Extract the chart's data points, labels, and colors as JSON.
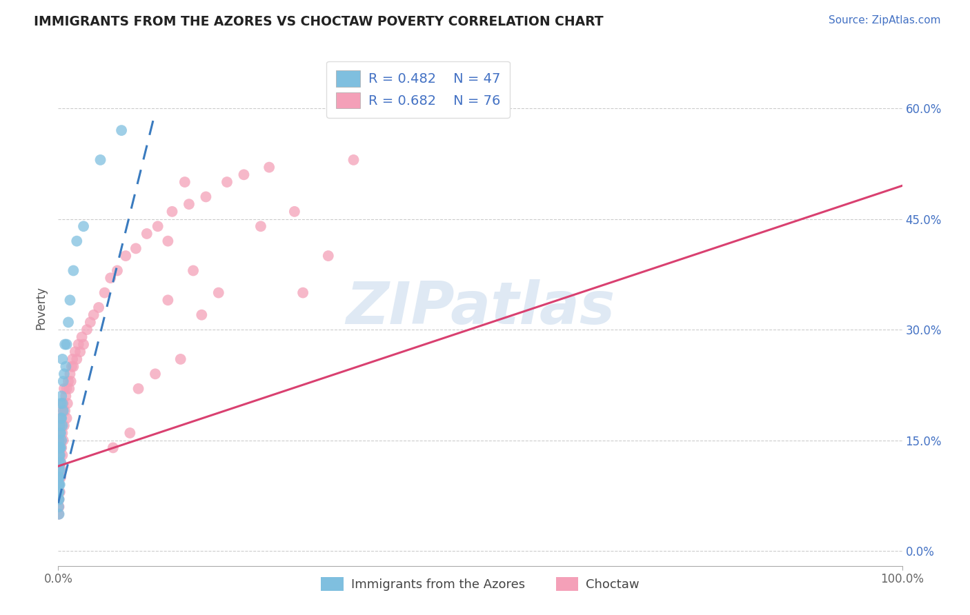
{
  "title": "IMMIGRANTS FROM THE AZORES VS CHOCTAW POVERTY CORRELATION CHART",
  "source_text": "Source: ZipAtlas.com",
  "ylabel": "Poverty",
  "xmin": 0.0,
  "xmax": 1.0,
  "ymin": -0.02,
  "ymax": 0.68,
  "ytick_vals": [
    0.0,
    0.15,
    0.3,
    0.45,
    0.6
  ],
  "ytick_labels": [
    "0.0%",
    "15.0%",
    "30.0%",
    "45.0%",
    "60.0%"
  ],
  "color_blue": "#7fbfdf",
  "color_pink": "#f4a0b8",
  "color_blue_line": "#3a7bbf",
  "color_pink_line": "#d94070",
  "color_blue_line_dashed": "#7ab0d8",
  "watermark_text": "ZIPatlas",
  "background_color": "#ffffff",
  "blue_x": [
    0.0005,
    0.0005,
    0.0005,
    0.0005,
    0.0005,
    0.001,
    0.001,
    0.001,
    0.001,
    0.001,
    0.001,
    0.001,
    0.001,
    0.001,
    0.001,
    0.0015,
    0.0015,
    0.002,
    0.002,
    0.002,
    0.002,
    0.002,
    0.002,
    0.003,
    0.003,
    0.003,
    0.003,
    0.003,
    0.004,
    0.004,
    0.004,
    0.005,
    0.005,
    0.005,
    0.006,
    0.006,
    0.007,
    0.008,
    0.009,
    0.01,
    0.012,
    0.014,
    0.018,
    0.022,
    0.03,
    0.05,
    0.075
  ],
  "blue_y": [
    0.06,
    0.07,
    0.08,
    0.09,
    0.1,
    0.05,
    0.07,
    0.08,
    0.09,
    0.1,
    0.11,
    0.12,
    0.13,
    0.14,
    0.15,
    0.1,
    0.14,
    0.09,
    0.11,
    0.13,
    0.14,
    0.16,
    0.17,
    0.12,
    0.14,
    0.16,
    0.18,
    0.2,
    0.15,
    0.18,
    0.21,
    0.17,
    0.2,
    0.26,
    0.19,
    0.23,
    0.24,
    0.28,
    0.25,
    0.28,
    0.31,
    0.34,
    0.38,
    0.42,
    0.44,
    0.53,
    0.57
  ],
  "pink_x": [
    0.0005,
    0.0005,
    0.001,
    0.001,
    0.001,
    0.001,
    0.001,
    0.002,
    0.002,
    0.002,
    0.002,
    0.003,
    0.003,
    0.003,
    0.003,
    0.004,
    0.004,
    0.004,
    0.005,
    0.005,
    0.005,
    0.006,
    0.006,
    0.007,
    0.007,
    0.008,
    0.009,
    0.01,
    0.01,
    0.011,
    0.012,
    0.013,
    0.014,
    0.015,
    0.016,
    0.017,
    0.018,
    0.02,
    0.022,
    0.024,
    0.026,
    0.028,
    0.03,
    0.034,
    0.038,
    0.042,
    0.048,
    0.055,
    0.062,
    0.07,
    0.08,
    0.092,
    0.105,
    0.118,
    0.135,
    0.155,
    0.175,
    0.2,
    0.22,
    0.25,
    0.15,
    0.28,
    0.16,
    0.19,
    0.13,
    0.29,
    0.17,
    0.13,
    0.095,
    0.115,
    0.145,
    0.35,
    0.085,
    0.065,
    0.24,
    0.32
  ],
  "pink_y": [
    0.05,
    0.09,
    0.06,
    0.07,
    0.09,
    0.12,
    0.15,
    0.08,
    0.1,
    0.13,
    0.16,
    0.1,
    0.12,
    0.15,
    0.18,
    0.11,
    0.14,
    0.17,
    0.13,
    0.16,
    0.19,
    0.15,
    0.2,
    0.17,
    0.22,
    0.19,
    0.21,
    0.18,
    0.22,
    0.2,
    0.23,
    0.22,
    0.24,
    0.23,
    0.25,
    0.26,
    0.25,
    0.27,
    0.26,
    0.28,
    0.27,
    0.29,
    0.28,
    0.3,
    0.31,
    0.32,
    0.33,
    0.35,
    0.37,
    0.38,
    0.4,
    0.41,
    0.43,
    0.44,
    0.46,
    0.47,
    0.48,
    0.5,
    0.51,
    0.52,
    0.5,
    0.46,
    0.38,
    0.35,
    0.42,
    0.35,
    0.32,
    0.34,
    0.22,
    0.24,
    0.26,
    0.53,
    0.16,
    0.14,
    0.44,
    0.4
  ],
  "blue_line_x0": 0.0,
  "blue_line_y0": 0.065,
  "blue_line_x1": 0.115,
  "blue_line_y1": 0.595,
  "pink_line_x0": 0.0,
  "pink_line_y0": 0.115,
  "pink_line_x1": 1.0,
  "pink_line_y1": 0.495,
  "legend1_label": "R = 0.482    N = 47",
  "legend2_label": "R = 0.682    N = 76",
  "bottom_legend1": "Immigrants from the Azores",
  "bottom_legend2": "Choctaw"
}
